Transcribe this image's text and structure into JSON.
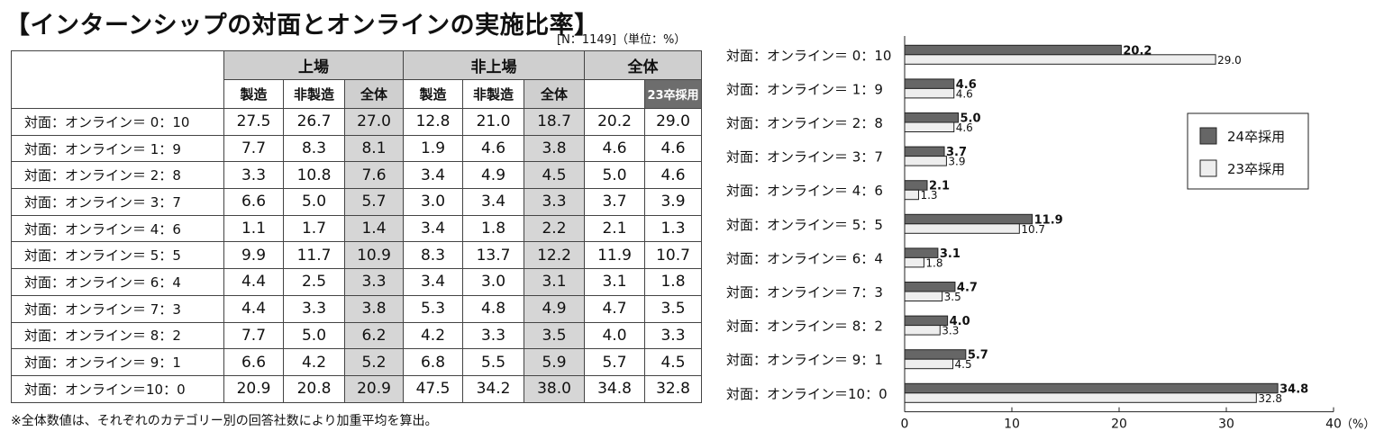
{
  "title": "【インターンシップの対面とオンラインの実施比率】",
  "meta": "[N：1149]（単位：%）",
  "note": "※全体数値は、それぞれのカテゴリー別の回答社数により加重平均を算出。",
  "table": {
    "group_headers": [
      "上場",
      "非上場",
      "全体"
    ],
    "sub_headers": [
      "製造",
      "非製造",
      "全体",
      "製造",
      "非製造",
      "全体",
      "23卒採用"
    ],
    "rows": [
      {
        "label": "対面：オンライン＝ 0：10",
        "values": [
          "27.5",
          "26.7",
          "27.0",
          "12.8",
          "21.0",
          "18.7",
          "20.2",
          "29.0"
        ]
      },
      {
        "label": "対面：オンライン＝ 1：9",
        "values": [
          "7.7",
          "8.3",
          "8.1",
          "1.9",
          "4.6",
          "3.8",
          "4.6",
          "4.6"
        ]
      },
      {
        "label": "対面：オンライン＝ 2：8",
        "values": [
          "3.3",
          "10.8",
          "7.6",
          "3.4",
          "4.9",
          "4.5",
          "5.0",
          "4.6"
        ]
      },
      {
        "label": "対面：オンライン＝ 3：7",
        "values": [
          "6.6",
          "5.0",
          "5.7",
          "3.0",
          "3.4",
          "3.3",
          "3.7",
          "3.9"
        ]
      },
      {
        "label": "対面：オンライン＝ 4：6",
        "values": [
          "1.1",
          "1.7",
          "1.4",
          "3.4",
          "1.8",
          "2.2",
          "2.1",
          "1.3"
        ]
      },
      {
        "label": "対面：オンライン＝ 5：5",
        "values": [
          "9.9",
          "11.7",
          "10.9",
          "8.3",
          "13.7",
          "12.2",
          "11.9",
          "10.7"
        ]
      },
      {
        "label": "対面：オンライン＝ 6：4",
        "values": [
          "4.4",
          "2.5",
          "3.3",
          "3.4",
          "3.0",
          "3.1",
          "3.1",
          "1.8"
        ]
      },
      {
        "label": "対面：オンライン＝ 7：3",
        "values": [
          "4.4",
          "3.3",
          "3.8",
          "5.3",
          "4.8",
          "4.9",
          "4.7",
          "3.5"
        ]
      },
      {
        "label": "対面：オンライン＝ 8：2",
        "values": [
          "7.7",
          "5.0",
          "6.2",
          "4.2",
          "3.3",
          "3.5",
          "4.0",
          "3.3"
        ]
      },
      {
        "label": "対面：オンライン＝ 9：1",
        "values": [
          "6.6",
          "4.2",
          "5.2",
          "6.8",
          "5.5",
          "5.9",
          "5.7",
          "4.5"
        ]
      },
      {
        "label": "対面：オンライン＝10：0",
        "values": [
          "20.9",
          "20.8",
          "20.9",
          "47.5",
          "34.2",
          "38.0",
          "34.8",
          "32.8"
        ]
      }
    ]
  },
  "chart_data": {
    "type": "bar",
    "orientation": "horizontal",
    "categories": [
      "対面：オンライン＝ 0：10",
      "対面：オンライン＝ 1：9",
      "対面：オンライン＝ 2：8",
      "対面：オンライン＝ 3：7",
      "対面：オンライン＝ 4：6",
      "対面：オンライン＝ 5：5",
      "対面：オンライン＝ 6：4",
      "対面：オンライン＝ 7：3",
      "対面：オンライン＝ 8：2",
      "対面：オンライン＝ 9：1",
      "対面：オンライン＝10：0"
    ],
    "series": [
      {
        "name": "24卒採用",
        "values": [
          20.2,
          4.6,
          5.0,
          3.7,
          2.1,
          11.9,
          3.1,
          4.7,
          4.0,
          5.7,
          34.8
        ],
        "color": "#666666"
      },
      {
        "name": "23卒採用",
        "values": [
          29.0,
          4.6,
          4.6,
          3.9,
          1.3,
          10.7,
          1.8,
          3.5,
          3.3,
          4.5,
          32.8
        ],
        "color": "#eeeeee"
      }
    ],
    "xlim": [
      0,
      40
    ],
    "xticks": [
      0,
      10,
      20,
      30,
      40
    ],
    "unit_label": "（%）",
    "legend_position": "right",
    "grid": false
  }
}
